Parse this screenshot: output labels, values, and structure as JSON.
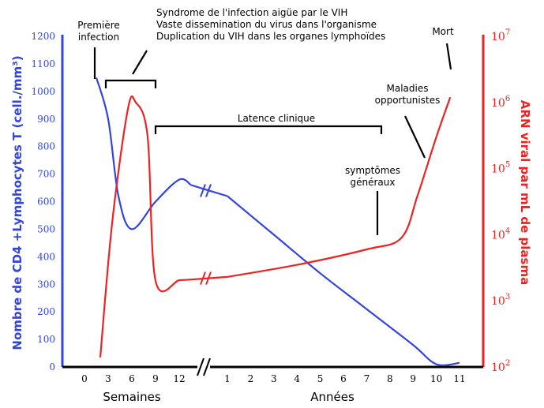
{
  "colors": {
    "cd4": "#3344dd",
    "rna": "#ee2222",
    "ink": "#000000"
  },
  "chart_data": {
    "type": "line",
    "left_axis": {
      "label": "Nombre de CD4 +Lymphocytes T (cell./mm³)",
      "range": [
        0,
        1200
      ],
      "ticks": [
        0,
        100,
        200,
        300,
        400,
        500,
        600,
        700,
        800,
        900,
        1000,
        1100,
        1200
      ],
      "tick_labels": [
        "0",
        "100",
        "200",
        "300",
        "400",
        "500",
        "600",
        "700",
        "800",
        "900",
        "1000",
        "1100",
        "1200"
      ]
    },
    "right_axis": {
      "label": "ARN viral par mL de plasma",
      "scale": "log",
      "range": [
        100,
        10000000
      ],
      "ticks": [
        100,
        1000,
        10000,
        100000,
        1000000,
        10000000
      ],
      "tick_labels": [
        {
          "base": "10",
          "exp": "2"
        },
        {
          "base": "10",
          "exp": "3"
        },
        {
          "base": "10",
          "exp": "4"
        },
        {
          "base": "10",
          "exp": "5"
        },
        {
          "base": "10",
          "exp": "6"
        },
        {
          "base": "10",
          "exp": "7"
        }
      ]
    },
    "x_axis": {
      "weeks": {
        "label": "Semaines",
        "ticks": [
          0,
          3,
          6,
          9,
          12
        ],
        "tick_labels": [
          "0",
          "3",
          "6",
          "9",
          "12"
        ]
      },
      "years": {
        "label": "Années",
        "ticks": [
          1,
          2,
          3,
          4,
          5,
          6,
          7,
          8,
          9,
          10,
          11
        ],
        "tick_labels": [
          "1",
          "2",
          "3",
          "4",
          "5",
          "6",
          "7",
          "8",
          "9",
          "10",
          "11"
        ]
      }
    },
    "series": [
      {
        "id": "cd4",
        "axis": "left",
        "points": [
          {
            "seg": "w",
            "x": 1.5,
            "y": 1050
          },
          {
            "seg": "w",
            "x": 3,
            "y": 900
          },
          {
            "seg": "w",
            "x": 4.3,
            "y": 620
          },
          {
            "seg": "w",
            "x": 6,
            "y": 500
          },
          {
            "seg": "w",
            "x": 9,
            "y": 600
          },
          {
            "seg": "w",
            "x": 12,
            "y": 680
          },
          {
            "seg": "w",
            "x": 13.5,
            "y": 660
          },
          {
            "seg": "y",
            "x": 1,
            "y": 620
          },
          {
            "seg": "y",
            "x": 3,
            "y": 480
          },
          {
            "seg": "y",
            "x": 5,
            "y": 340
          },
          {
            "seg": "y",
            "x": 7,
            "y": 210
          },
          {
            "seg": "y",
            "x": 9,
            "y": 80
          },
          {
            "seg": "y",
            "x": 10,
            "y": 10
          },
          {
            "seg": "y",
            "x": 11,
            "y": 15
          }
        ]
      },
      {
        "id": "rna",
        "axis": "right",
        "points": [
          {
            "seg": "w",
            "x": 2,
            "y": 140
          },
          {
            "seg": "w",
            "x": 3.5,
            "y": 15000
          },
          {
            "seg": "w",
            "x": 5.5,
            "y": 800000
          },
          {
            "seg": "w",
            "x": 6.5,
            "y": 1000000
          },
          {
            "seg": "w",
            "x": 8,
            "y": 300000
          },
          {
            "seg": "w",
            "x": 9,
            "y": 2000
          },
          {
            "seg": "w",
            "x": 12,
            "y": 2050
          },
          {
            "seg": "w",
            "x": 13.5,
            "y": 2100
          },
          {
            "seg": "y",
            "x": 1,
            "y": 2300
          },
          {
            "seg": "y",
            "x": 4,
            "y": 3500
          },
          {
            "seg": "y",
            "x": 7,
            "y": 6000
          },
          {
            "seg": "y",
            "x": 8.5,
            "y": 9000
          },
          {
            "seg": "y",
            "x": 9.2,
            "y": 40000
          },
          {
            "seg": "y",
            "x": 10,
            "y": 300000
          },
          {
            "seg": "y",
            "x": 10.6,
            "y": 1200000
          }
        ]
      }
    ],
    "annotations": [
      {
        "id": "premiere",
        "lines": [
          "Première",
          "infection"
        ]
      },
      {
        "id": "syndrome",
        "lines": [
          "Syndrome de l'infection aigüe par le VIH",
          "Vaste dissemination du virus dans l'organisme",
          "Duplication du VIH dans les organes lymphoïdes"
        ]
      },
      {
        "id": "mort",
        "lines": [
          "Mort"
        ]
      },
      {
        "id": "maladies",
        "lines": [
          "Maladies",
          "opportunistes"
        ]
      },
      {
        "id": "latence",
        "lines": [
          "Latence clinique"
        ]
      },
      {
        "id": "symptomes",
        "lines": [
          "symptômes",
          "généraux"
        ]
      }
    ]
  }
}
